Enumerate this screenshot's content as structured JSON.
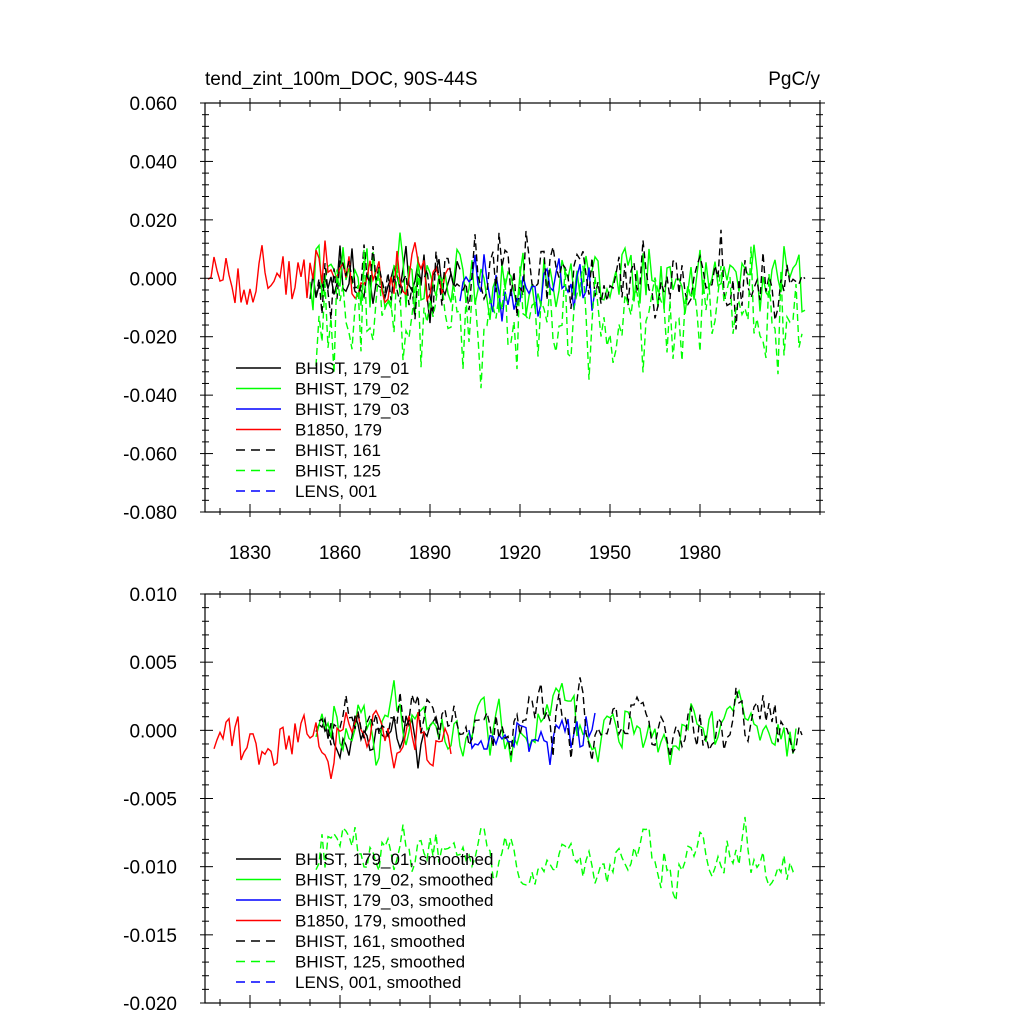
{
  "chart_data": [
    {
      "type": "line",
      "title_left": "tend_zint_100m_DOC, 90S-44S",
      "title_right": "PgC/y",
      "xlabel": "",
      "ylabel": "",
      "xlim": [
        1815,
        2020
      ],
      "ylim": [
        -0.08,
        0.06
      ],
      "yticks": [
        "0.060",
        "0.040",
        "0.020",
        "0.000",
        "-0.020",
        "-0.040",
        "-0.060",
        "-0.080"
      ],
      "ytick_values": [
        0.06,
        0.04,
        0.02,
        0.0,
        -0.02,
        -0.04,
        -0.06,
        -0.08
      ],
      "xticks": [
        "1830",
        "1860",
        "1890",
        "1920",
        "1950",
        "1980"
      ],
      "xtick_values": [
        1830,
        1860,
        1890,
        1920,
        1950,
        1980
      ],
      "legend_position": "bottom-left",
      "series": [
        {
          "name": "BHIST, 179_01",
          "color": "#000000",
          "dash": "solid",
          "x_start": 1850,
          "x_end": 1900,
          "amp": 0.012,
          "offset": 0.0,
          "seed": 11
        },
        {
          "name": "BHIST, 179_02",
          "color": "#00ff00",
          "dash": "solid",
          "x_start": 1850,
          "x_end": 2015,
          "amp": 0.013,
          "offset": 0.0,
          "seed": 22
        },
        {
          "name": "BHIST, 179_03",
          "color": "#0000ff",
          "dash": "solid",
          "x_start": 1900,
          "x_end": 1945,
          "amp": 0.011,
          "offset": -0.002,
          "seed": 33
        },
        {
          "name": "B1850, 179",
          "color": "#ff0000",
          "dash": "solid",
          "x_start": 1816,
          "x_end": 1897,
          "amp": 0.012,
          "offset": 0.0,
          "seed": 44
        },
        {
          "name": "BHIST, 161",
          "color": "#000000",
          "dash": "dashed",
          "x_start": 1852,
          "x_end": 2015,
          "amp": 0.014,
          "offset": 0.0,
          "seed": 55
        },
        {
          "name": "BHIST, 125",
          "color": "#00ff00",
          "dash": "dashed",
          "x_start": 1852,
          "x_end": 2014,
          "amp": 0.02,
          "offset": -0.012,
          "seed": 66
        },
        {
          "name": "LENS, 001",
          "color": "#0000ff",
          "dash": "dashed",
          "x_start": null,
          "x_end": null,
          "amp": 0,
          "offset": 0,
          "seed": 0
        }
      ]
    },
    {
      "type": "line",
      "title_left": "",
      "title_right": "",
      "xlabel": "",
      "ylabel": "",
      "xlim": [
        1815,
        2020
      ],
      "ylim": [
        -0.02,
        0.01
      ],
      "yticks": [
        "0.010",
        "0.005",
        "0.000",
        "-0.005",
        "-0.010",
        "-0.015",
        "-0.020"
      ],
      "ytick_values": [
        0.01,
        0.005,
        0.0,
        -0.005,
        -0.01,
        -0.015,
        -0.02
      ],
      "xticks": [],
      "xtick_values": [
        1830,
        1860,
        1890,
        1920,
        1950,
        1980
      ],
      "legend_position": "bottom-left",
      "series": [
        {
          "name": "BHIST, 179_01, smoothed",
          "color": "#000000",
          "dash": "solid",
          "x_start": 1852,
          "x_end": 1893,
          "amp": 0.0035,
          "offset": 0.0,
          "seed": 111
        },
        {
          "name": "BHIST, 179_02, smoothed",
          "color": "#00ff00",
          "dash": "solid",
          "x_start": 1852,
          "x_end": 2012,
          "amp": 0.0035,
          "offset": 0.0005,
          "seed": 122
        },
        {
          "name": "BHIST, 179_03, smoothed",
          "color": "#0000ff",
          "dash": "solid",
          "x_start": 1903,
          "x_end": 1945,
          "amp": 0.003,
          "offset": 0.0,
          "seed": 133
        },
        {
          "name": "B1850, 179, smoothed",
          "color": "#ff0000",
          "dash": "solid",
          "x_start": 1818,
          "x_end": 1897,
          "amp": 0.0035,
          "offset": -0.0005,
          "seed": 144
        },
        {
          "name": "BHIST, 161, smoothed",
          "color": "#000000",
          "dash": "dashed",
          "x_start": 1853,
          "x_end": 2014,
          "amp": 0.004,
          "offset": 0.0005,
          "seed": 155
        },
        {
          "name": "BHIST, 125, smoothed",
          "color": "#00ff00",
          "dash": "dashed",
          "x_start": 1852,
          "x_end": 2012,
          "amp": 0.0035,
          "offset": -0.0095,
          "seed": 166
        },
        {
          "name": "LENS, 001, smoothed",
          "color": "#0000ff",
          "dash": "dashed",
          "x_start": null,
          "x_end": null,
          "amp": 0,
          "offset": 0,
          "seed": 0
        }
      ]
    }
  ]
}
